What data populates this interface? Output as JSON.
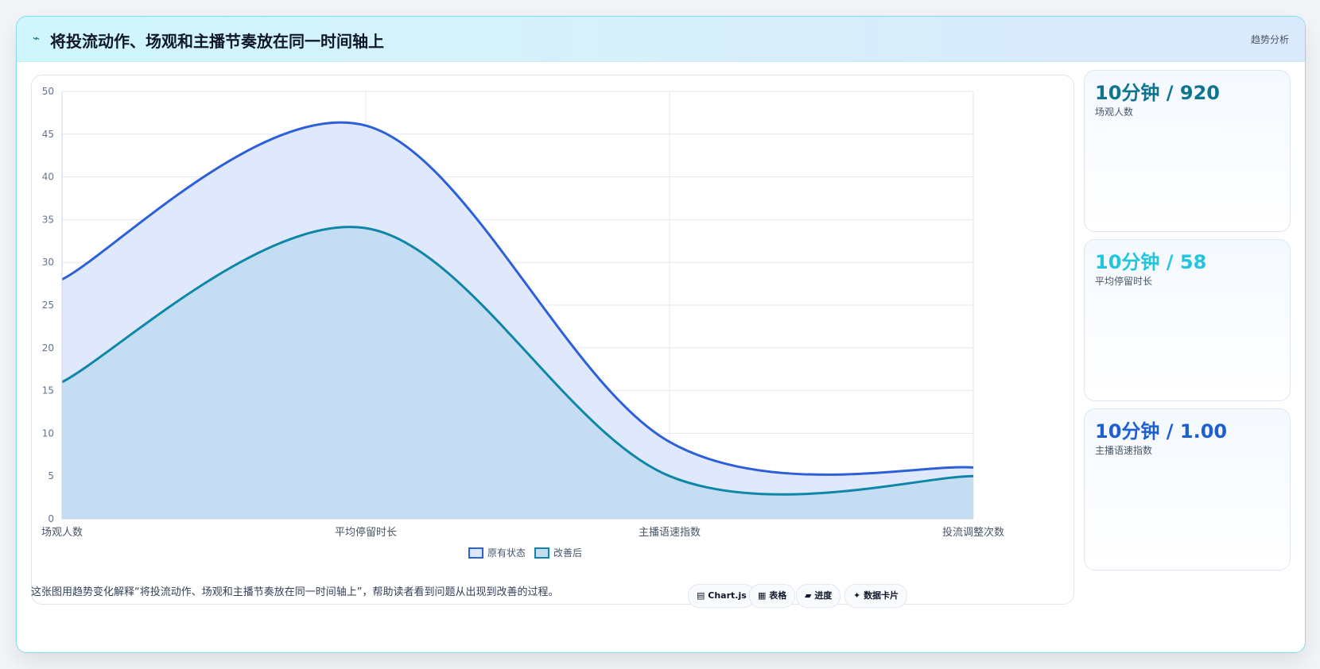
{
  "header": {
    "icon": "sparkline-icon",
    "title": "将投流动作、场观和主播节奏放在同一时间轴上",
    "tag": "趋势分析"
  },
  "chart_data": {
    "type": "line",
    "categories": [
      "场观人数",
      "平均停留时长",
      "主播语速指数",
      "投流调整次数"
    ],
    "series": [
      {
        "name": "原有状态",
        "values": [
          28,
          46,
          9,
          6
        ],
        "color": "#2c5fd8",
        "fill": "#dde7fb"
      },
      {
        "name": "改善后",
        "values": [
          16,
          34,
          5,
          5
        ],
        "color": "#0e86a8",
        "fill": "#c2dcf1"
      }
    ],
    "ylim": [
      0,
      50
    ],
    "yticks": [
      0,
      5,
      10,
      15,
      20,
      25,
      30,
      35,
      40,
      45,
      50
    ],
    "grid": true,
    "legend": "bottom"
  },
  "stats": [
    {
      "value": "10分钟 / 920",
      "label": "场观人数",
      "color": "#0e7490"
    },
    {
      "value": "10分钟 / 58",
      "label": "平均停留时长",
      "color": "#22c5dd"
    },
    {
      "value": "10分钟 / 1.00",
      "label": "主播语速指数",
      "color": "#1d5fd0"
    }
  ],
  "footer": {
    "text": "这张图用趋势变化解释“将投流动作、场观和主播节奏放在同一时间轴上”，帮助读者看到问题从出现到改善的过程。",
    "pills": [
      {
        "icon": "chart-icon",
        "glyph": "▤",
        "label": "Chart.js"
      },
      {
        "icon": "table-icon",
        "glyph": "▦",
        "label": "表格"
      },
      {
        "icon": "progress-icon",
        "glyph": "▰",
        "label": "进度"
      },
      {
        "icon": "card-icon",
        "glyph": "✦",
        "label": "数据卡片"
      }
    ]
  }
}
